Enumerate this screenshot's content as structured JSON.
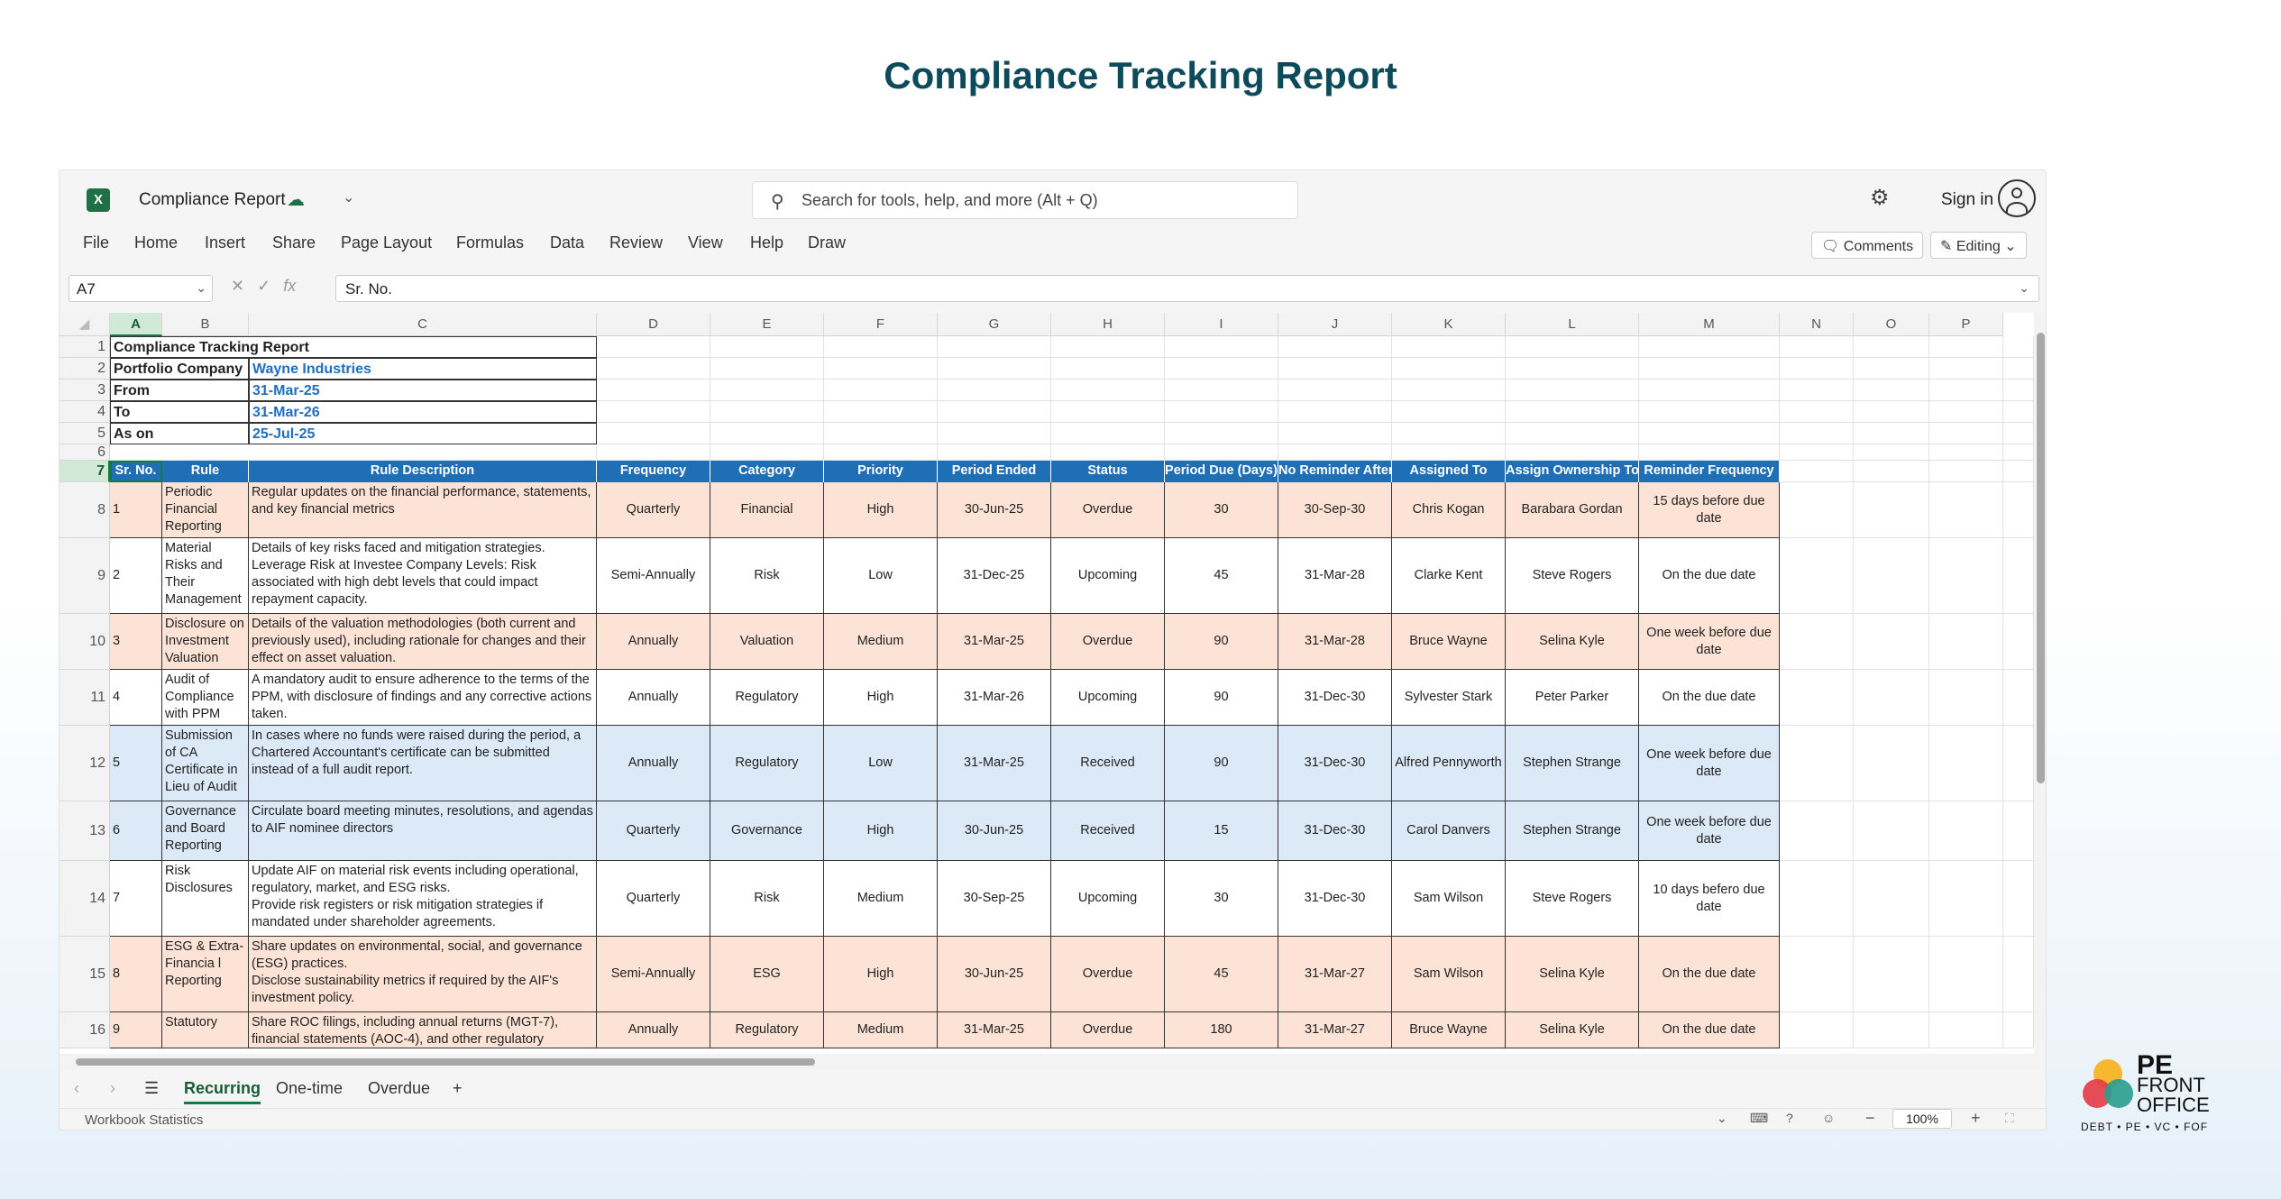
{
  "page_title": "Compliance Tracking Report",
  "window": {
    "doc_title": "Compliance Report",
    "search_placeholder": "Search for tools, help, and more (Alt + Q)",
    "signin_label": "Sign in",
    "menu": [
      "File",
      "Home",
      "Insert",
      "Share",
      "Page Layout",
      "Formulas",
      "Data",
      "Review",
      "View",
      "Help",
      "Draw"
    ],
    "comments_label": "Comments",
    "editing_label": "Editing",
    "name_box": "A7",
    "formula_value": "Sr. No."
  },
  "columns": [
    "A",
    "B",
    "C",
    "D",
    "E",
    "F",
    "G",
    "H",
    "I",
    "J",
    "K",
    "L",
    "M",
    "N",
    "O",
    "P"
  ],
  "info": {
    "title": "Compliance Tracking Report",
    "rows": [
      {
        "label": "Portfolio Company",
        "value": "Wayne Industries"
      },
      {
        "label": "From",
        "value": "31-Mar-25"
      },
      {
        "label": "To",
        "value": "31-Mar-26"
      },
      {
        "label": "As on",
        "value": "25-Jul-25"
      }
    ]
  },
  "table_headers": [
    "Sr. No.",
    "Rule",
    "Rule Description",
    "Frequency",
    "Category",
    "Priority",
    "Period Ended",
    "Status",
    "Period Due (Days)",
    "No Reminder After",
    "Assigned To",
    "Assign Ownership To",
    "Reminder Frequency"
  ],
  "rows": [
    {
      "row": "8",
      "sr": "1",
      "rule": "Periodic Financial Reporting",
      "desc": "Regular updates on the financial performance, statements, and key financial metrics",
      "frequency": "Quarterly",
      "category": "Financial",
      "priority": "High",
      "period_ended": "30-Jun-25",
      "status": "Overdue",
      "due_days": "30",
      "no_reminder": "30-Sep-30",
      "assigned": "Chris Kogan",
      "owner": "Barabara Gordan",
      "reminder": "15 days before due date",
      "color": "#fde3d6"
    },
    {
      "row": "9",
      "sr": "2",
      "rule": "Material Risks and Their Management",
      "desc": "Details of key risks faced and mitigation strategies.\nLeverage Risk at  Investee Company Levels: Risk associated with high debt levels that could impact repayment capacity.",
      "frequency": "Semi-Annually",
      "category": "Risk",
      "priority": "Low",
      "period_ended": "31-Dec-25",
      "status": "Upcoming",
      "due_days": "45",
      "no_reminder": "31-Mar-28",
      "assigned": "Clarke Kent",
      "owner": "Steve Rogers",
      "reminder": "On the due date",
      "color": "#ffffff"
    },
    {
      "row": "10",
      "sr": "3",
      "rule": "Disclosure on Investment Valuation",
      "desc": "Details of the valuation methodologies (both current and previously used), including rationale for changes and their effect on asset valuation.",
      "frequency": "Annually",
      "category": "Valuation",
      "priority": "Medium",
      "period_ended": "31-Mar-25",
      "status": "Overdue",
      "due_days": "90",
      "no_reminder": "31-Mar-28",
      "assigned": "Bruce Wayne",
      "owner": "Selina Kyle",
      "reminder": "One week before due date",
      "color": "#fde3d6"
    },
    {
      "row": "11",
      "sr": "4",
      "rule": "Audit of Compliance with PPM",
      "desc": "A mandatory audit to ensure adherence to the terms of the PPM, with disclosure of findings and any corrective actions taken.",
      "frequency": "Annually",
      "category": "Regulatory",
      "priority": "High",
      "period_ended": "31-Mar-26",
      "status": "Upcoming",
      "due_days": "90",
      "no_reminder": "31-Dec-30",
      "assigned": "Sylvester Stark",
      "owner": "Peter Parker",
      "reminder": "On the due date",
      "color": "#ffffff"
    },
    {
      "row": "12",
      "sr": "5",
      "rule": "Submission of CA Certificate in Lieu of Audit",
      "desc": "In cases where no funds were raised during the period, a Chartered Accountant's certificate can be submitted instead of a full audit report.",
      "frequency": "Annually",
      "category": "Regulatory",
      "priority": "Low",
      "period_ended": "31-Mar-25",
      "status": "Received",
      "due_days": "90",
      "no_reminder": "31-Dec-30",
      "assigned": "Alfred Pennyworth",
      "owner": "Stephen Strange",
      "reminder": "One week before due date",
      "color": "#dce9f6"
    },
    {
      "row": "13",
      "sr": "6",
      "rule": "Governance and Board Reporting",
      "desc": "Circulate board meeting minutes, resolutions, and agendas to AIF nominee directors",
      "frequency": "Quarterly",
      "category": "Governance",
      "priority": "High",
      "period_ended": "30-Jun-25",
      "status": "Received",
      "due_days": "15",
      "no_reminder": "31-Dec-30",
      "assigned": "Carol Danvers",
      "owner": "Stephen Strange",
      "reminder": "One week before due date",
      "color": "#dce9f6"
    },
    {
      "row": "14",
      "sr": "7",
      "rule": "Risk Disclosures",
      "desc": "Update AIF on material risk events including operational, regulatory, market, and ESG risks.\nProvide risk registers or risk mitigation strategies if mandated under shareholder agreements.",
      "frequency": "Quarterly",
      "category": "Risk",
      "priority": "Medium",
      "period_ended": "30-Sep-25",
      "status": "Upcoming",
      "due_days": "30",
      "no_reminder": "31-Dec-30",
      "assigned": "Sam Wilson",
      "owner": "Steve Rogers",
      "reminder": "10 days befero due date",
      "color": "#ffffff"
    },
    {
      "row": "15",
      "sr": "8",
      "rule": "ESG & Extra-Financia l Reporting",
      "desc": "Share updates on environmental, social, and governance (ESG) practices.\nDisclose sustainability metrics if required by the AIF's investment policy.",
      "frequency": "Semi-Annually",
      "category": "ESG",
      "priority": "High",
      "period_ended": "30-Jun-25",
      "status": "Overdue",
      "due_days": "45",
      "no_reminder": "31-Mar-27",
      "assigned": "Sam Wilson",
      "owner": "Selina Kyle",
      "reminder": "On the due date",
      "color": "#fde3d6"
    },
    {
      "row": "16",
      "sr": "9",
      "rule": "Statutory",
      "desc": "Share ROC filings, including annual returns (MGT-7), financial statements (AOC-4), and other regulatory",
      "frequency": "Annually",
      "category": "Regulatory",
      "priority": "Medium",
      "period_ended": "31-Mar-25",
      "status": "Overdue",
      "due_days": "180",
      "no_reminder": "31-Mar-27",
      "assigned": "Bruce Wayne",
      "owner": "Selina Kyle",
      "reminder": "On the due date",
      "color": "#fde3d6"
    }
  ],
  "sheet_tabs": [
    "Recurring",
    "One-time",
    "Overdue"
  ],
  "status_text": "Workbook Statistics",
  "zoom": "100%",
  "logo": {
    "line1": "PE",
    "line2": "FRONT",
    "line3": "OFFICE",
    "tagline": "DEBT • PE • VC • FOF"
  }
}
